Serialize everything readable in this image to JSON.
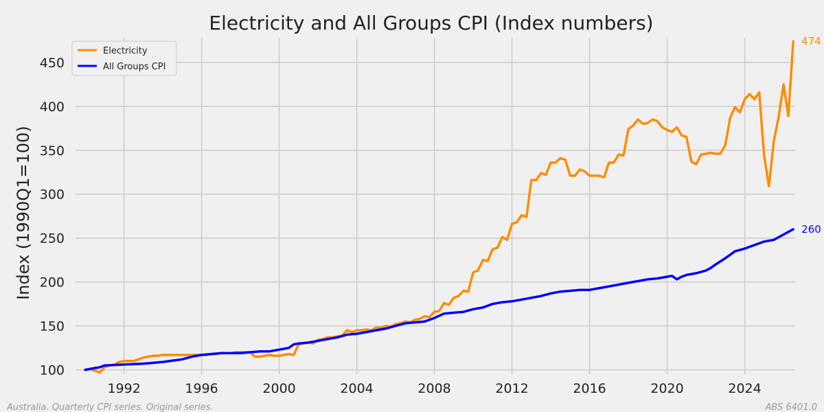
{
  "chart_data": {
    "type": "line",
    "title": "Electricity and All Groups CPI (Index numbers)",
    "xlabel": "",
    "ylabel": "Index (1990Q1=100)",
    "xlim": [
      1989.5,
      2026.6
    ],
    "ylim": [
      95,
      478
    ],
    "x_ticks": [
      1992,
      1996,
      2000,
      2004,
      2008,
      2012,
      2016,
      2020,
      2024
    ],
    "y_ticks": [
      100,
      150,
      200,
      250,
      300,
      350,
      400,
      450
    ],
    "grid": true,
    "legend_position": "upper-left",
    "colors": {
      "background": "#f0f0f0",
      "grid": "#cbcbcb",
      "electricity": "#ff8c00",
      "cpi": "#0000ff"
    },
    "series": [
      {
        "name": "Electricity",
        "color": "#ff8c00",
        "end_label": "474",
        "points": [
          [
            1990.0,
            100
          ],
          [
            1990.25,
            101
          ],
          [
            1990.5,
            99
          ],
          [
            1990.75,
            97
          ],
          [
            1991.0,
            103
          ],
          [
            1991.25,
            105
          ],
          [
            1991.5,
            106
          ],
          [
            1991.75,
            109
          ],
          [
            1992.0,
            110
          ],
          [
            1992.25,
            110
          ],
          [
            1992.5,
            110
          ],
          [
            1992.75,
            112
          ],
          [
            1993.0,
            114
          ],
          [
            1993.25,
            115
          ],
          [
            1993.5,
            116
          ],
          [
            1993.75,
            116
          ],
          [
            1994.0,
            117
          ],
          [
            1994.25,
            117
          ],
          [
            1994.5,
            117
          ],
          [
            1994.75,
            117
          ],
          [
            1995.0,
            117
          ],
          [
            1995.25,
            117
          ],
          [
            1995.5,
            117
          ],
          [
            1995.75,
            117
          ],
          [
            1996.0,
            117
          ],
          [
            1996.25,
            117
          ],
          [
            1996.5,
            118
          ],
          [
            1996.75,
            118
          ],
          [
            1997.0,
            119
          ],
          [
            1997.25,
            119
          ],
          [
            1997.5,
            119
          ],
          [
            1997.75,
            120
          ],
          [
            1998.0,
            120
          ],
          [
            1998.25,
            120
          ],
          [
            1998.5,
            120
          ],
          [
            1998.75,
            115
          ],
          [
            1999.0,
            115
          ],
          [
            1999.25,
            116
          ],
          [
            1999.5,
            117
          ],
          [
            1999.75,
            116
          ],
          [
            2000.0,
            116
          ],
          [
            2000.25,
            117
          ],
          [
            2000.5,
            118
          ],
          [
            2000.75,
            117
          ],
          [
            2001.0,
            129
          ],
          [
            2001.25,
            130
          ],
          [
            2001.5,
            131
          ],
          [
            2001.75,
            130
          ],
          [
            2002.0,
            134
          ],
          [
            2002.25,
            135
          ],
          [
            2002.5,
            137
          ],
          [
            2002.75,
            137
          ],
          [
            2003.0,
            138
          ],
          [
            2003.25,
            139
          ],
          [
            2003.5,
            145
          ],
          [
            2003.75,
            143
          ],
          [
            2004.0,
            145
          ],
          [
            2004.25,
            145
          ],
          [
            2004.5,
            146
          ],
          [
            2004.75,
            145
          ],
          [
            2005.0,
            148
          ],
          [
            2005.25,
            148
          ],
          [
            2005.5,
            150
          ],
          [
            2005.75,
            149
          ],
          [
            2006.0,
            152
          ],
          [
            2006.25,
            153
          ],
          [
            2006.5,
            155
          ],
          [
            2006.75,
            154
          ],
          [
            2007.0,
            157
          ],
          [
            2007.25,
            158
          ],
          [
            2007.5,
            161
          ],
          [
            2007.75,
            160
          ],
          [
            2008.0,
            166
          ],
          [
            2008.25,
            167
          ],
          [
            2008.5,
            176
          ],
          [
            2008.75,
            174
          ],
          [
            2009.0,
            182
          ],
          [
            2009.25,
            184
          ],
          [
            2009.5,
            190
          ],
          [
            2009.75,
            189
          ],
          [
            2010.0,
            211
          ],
          [
            2010.25,
            213
          ],
          [
            2010.5,
            225
          ],
          [
            2010.75,
            224
          ],
          [
            2011.0,
            237
          ],
          [
            2011.25,
            239
          ],
          [
            2011.5,
            251
          ],
          [
            2011.75,
            248
          ],
          [
            2012.0,
            266
          ],
          [
            2012.25,
            268
          ],
          [
            2012.5,
            276
          ],
          [
            2012.75,
            274
          ],
          [
            2013.0,
            316
          ],
          [
            2013.25,
            316
          ],
          [
            2013.5,
            324
          ],
          [
            2013.75,
            322
          ],
          [
            2014.0,
            336
          ],
          [
            2014.25,
            336
          ],
          [
            2014.5,
            341
          ],
          [
            2014.75,
            339
          ],
          [
            2015.0,
            321
          ],
          [
            2015.25,
            321
          ],
          [
            2015.5,
            328
          ],
          [
            2015.75,
            326
          ],
          [
            2016.0,
            321
          ],
          [
            2016.25,
            321
          ],
          [
            2016.5,
            321
          ],
          [
            2016.75,
            319
          ],
          [
            2017.0,
            336
          ],
          [
            2017.25,
            336
          ],
          [
            2017.5,
            345
          ],
          [
            2017.75,
            344
          ],
          [
            2018.0,
            374
          ],
          [
            2018.25,
            378
          ],
          [
            2018.5,
            385
          ],
          [
            2018.75,
            380
          ],
          [
            2019.0,
            381
          ],
          [
            2019.25,
            385
          ],
          [
            2019.5,
            383
          ],
          [
            2019.75,
            376
          ],
          [
            2020.0,
            373
          ],
          [
            2020.25,
            371
          ],
          [
            2020.5,
            376
          ],
          [
            2020.75,
            367
          ],
          [
            2021.0,
            365
          ],
          [
            2021.25,
            337
          ],
          [
            2021.5,
            334
          ],
          [
            2021.75,
            345
          ],
          [
            2022.0,
            346
          ],
          [
            2022.25,
            347
          ],
          [
            2022.5,
            346
          ],
          [
            2022.75,
            346
          ],
          [
            2023.0,
            356
          ],
          [
            2023.25,
            387
          ],
          [
            2023.5,
            399
          ],
          [
            2023.75,
            393
          ],
          [
            2024.0,
            408
          ],
          [
            2024.25,
            414
          ],
          [
            2024.5,
            408
          ],
          [
            2024.75,
            416
          ],
          [
            2025.0,
            344
          ],
          [
            2025.25,
            309
          ],
          [
            2025.5,
            360
          ],
          [
            2025.75,
            388
          ],
          [
            2026.0,
            425
          ],
          [
            2026.25,
            389
          ],
          [
            2026.5,
            474
          ]
        ]
      },
      {
        "name": "All Groups CPI",
        "color": "#0000ff",
        "end_label": "260",
        "points": [
          [
            1990.0,
            100
          ],
          [
            1990.5,
            102
          ],
          [
            1990.75,
            103
          ],
          [
            1991.0,
            105
          ],
          [
            1992.0,
            106
          ],
          [
            1993.0,
            107
          ],
          [
            1993.5,
            108
          ],
          [
            1994.0,
            109
          ],
          [
            1995.0,
            112
          ],
          [
            1995.5,
            115
          ],
          [
            1996.0,
            117
          ],
          [
            1996.5,
            118
          ],
          [
            1997.0,
            119
          ],
          [
            1997.5,
            119
          ],
          [
            1998.0,
            119
          ],
          [
            1999.0,
            121
          ],
          [
            1999.5,
            121
          ],
          [
            2000.0,
            123
          ],
          [
            2000.5,
            125
          ],
          [
            2000.75,
            129
          ],
          [
            2001.0,
            130
          ],
          [
            2001.5,
            131
          ],
          [
            2002.0,
            133
          ],
          [
            2002.5,
            135
          ],
          [
            2003.0,
            137
          ],
          [
            2003.5,
            140
          ],
          [
            2004.0,
            141
          ],
          [
            2004.5,
            143
          ],
          [
            2005.0,
            145
          ],
          [
            2005.5,
            147
          ],
          [
            2006.0,
            150
          ],
          [
            2006.5,
            153
          ],
          [
            2007.0,
            154
          ],
          [
            2007.5,
            155
          ],
          [
            2008.0,
            159
          ],
          [
            2008.5,
            164
          ],
          [
            2009.0,
            165
          ],
          [
            2009.5,
            166
          ],
          [
            2010.0,
            169
          ],
          [
            2010.5,
            171
          ],
          [
            2011.0,
            175
          ],
          [
            2011.5,
            177
          ],
          [
            2012.0,
            178
          ],
          [
            2012.5,
            180
          ],
          [
            2013.0,
            182
          ],
          [
            2013.5,
            184
          ],
          [
            2014.0,
            187
          ],
          [
            2014.5,
            189
          ],
          [
            2015.0,
            190
          ],
          [
            2015.5,
            191
          ],
          [
            2016.0,
            191
          ],
          [
            2016.5,
            193
          ],
          [
            2017.0,
            195
          ],
          [
            2017.5,
            197
          ],
          [
            2018.0,
            199
          ],
          [
            2018.5,
            201
          ],
          [
            2019.0,
            203
          ],
          [
            2019.5,
            204
          ],
          [
            2020.0,
            206
          ],
          [
            2020.25,
            207
          ],
          [
            2020.5,
            203
          ],
          [
            2020.75,
            206
          ],
          [
            2021.0,
            208
          ],
          [
            2021.5,
            210
          ],
          [
            2022.0,
            213
          ],
          [
            2022.25,
            216
          ],
          [
            2022.5,
            220
          ],
          [
            2023.0,
            227
          ],
          [
            2023.5,
            235
          ],
          [
            2024.0,
            238
          ],
          [
            2024.5,
            242
          ],
          [
            2025.0,
            246
          ],
          [
            2025.5,
            248
          ],
          [
            2026.0,
            254
          ],
          [
            2026.25,
            257
          ],
          [
            2026.5,
            260
          ]
        ]
      }
    ],
    "footnote_left": "Australia. Quarterly CPI series. Original series.",
    "footnote_right": "ABS 6401.0"
  }
}
